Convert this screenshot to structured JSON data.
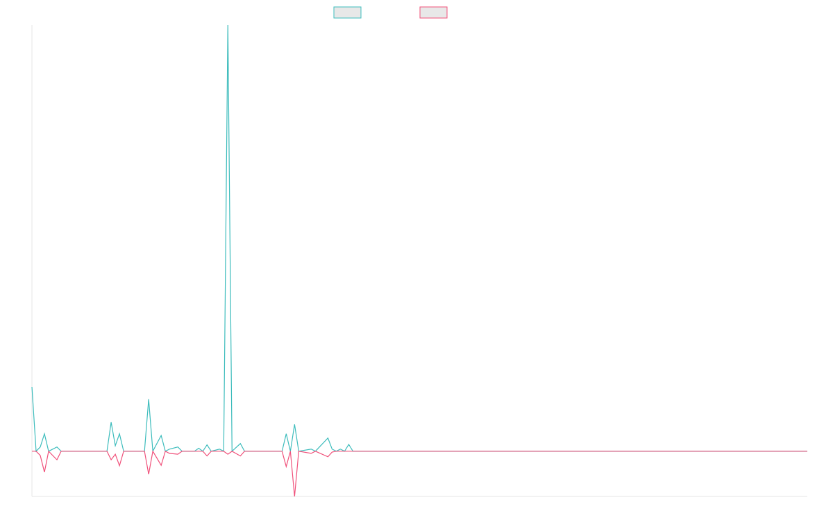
{
  "chart_data": {
    "type": "line",
    "x": [
      0,
      1,
      2,
      3,
      4,
      6,
      7,
      18,
      19,
      20,
      21,
      22,
      27,
      28,
      29,
      31,
      32,
      33,
      35,
      36,
      39,
      40,
      41,
      42,
      43,
      45,
      46,
      47,
      48,
      50,
      51,
      60,
      61,
      62,
      63,
      64,
      67,
      68,
      71,
      72,
      73,
      74,
      75,
      76,
      77,
      186
    ],
    "series": [
      {
        "color": "#3cbcbc",
        "values": [
          15.1,
          0,
          1,
          4.1,
          0,
          1,
          0,
          0,
          6.8,
          1.3,
          4.1,
          0,
          0,
          12.2,
          0,
          3.7,
          0,
          0.5,
          1,
          0,
          0,
          0.7,
          0,
          1.5,
          0,
          0.5,
          0,
          100,
          0,
          1.8,
          0,
          0,
          4.1,
          0,
          6.3,
          0,
          0.5,
          0,
          3.1,
          0.5,
          0,
          0.5,
          0,
          1.6,
          0,
          0
        ]
      },
      {
        "color": "#f0507a",
        "values": [
          0,
          0,
          -1,
          -4.9,
          0,
          -2,
          0,
          0,
          -2,
          -0.7,
          -3.4,
          0,
          0,
          -5.4,
          0,
          -3.3,
          0,
          -0.5,
          -0.7,
          0,
          0,
          0,
          0,
          -1.1,
          0,
          0,
          0,
          -0.7,
          0,
          -1.1,
          0,
          0,
          -3.6,
          0,
          -10.6,
          0,
          -0.5,
          0,
          -1.3,
          -0.2,
          0,
          0,
          0,
          0,
          0,
          0
        ]
      }
    ],
    "xlim": [
      0,
      186
    ],
    "ylim": [
      -10.6,
      100
    ]
  }
}
